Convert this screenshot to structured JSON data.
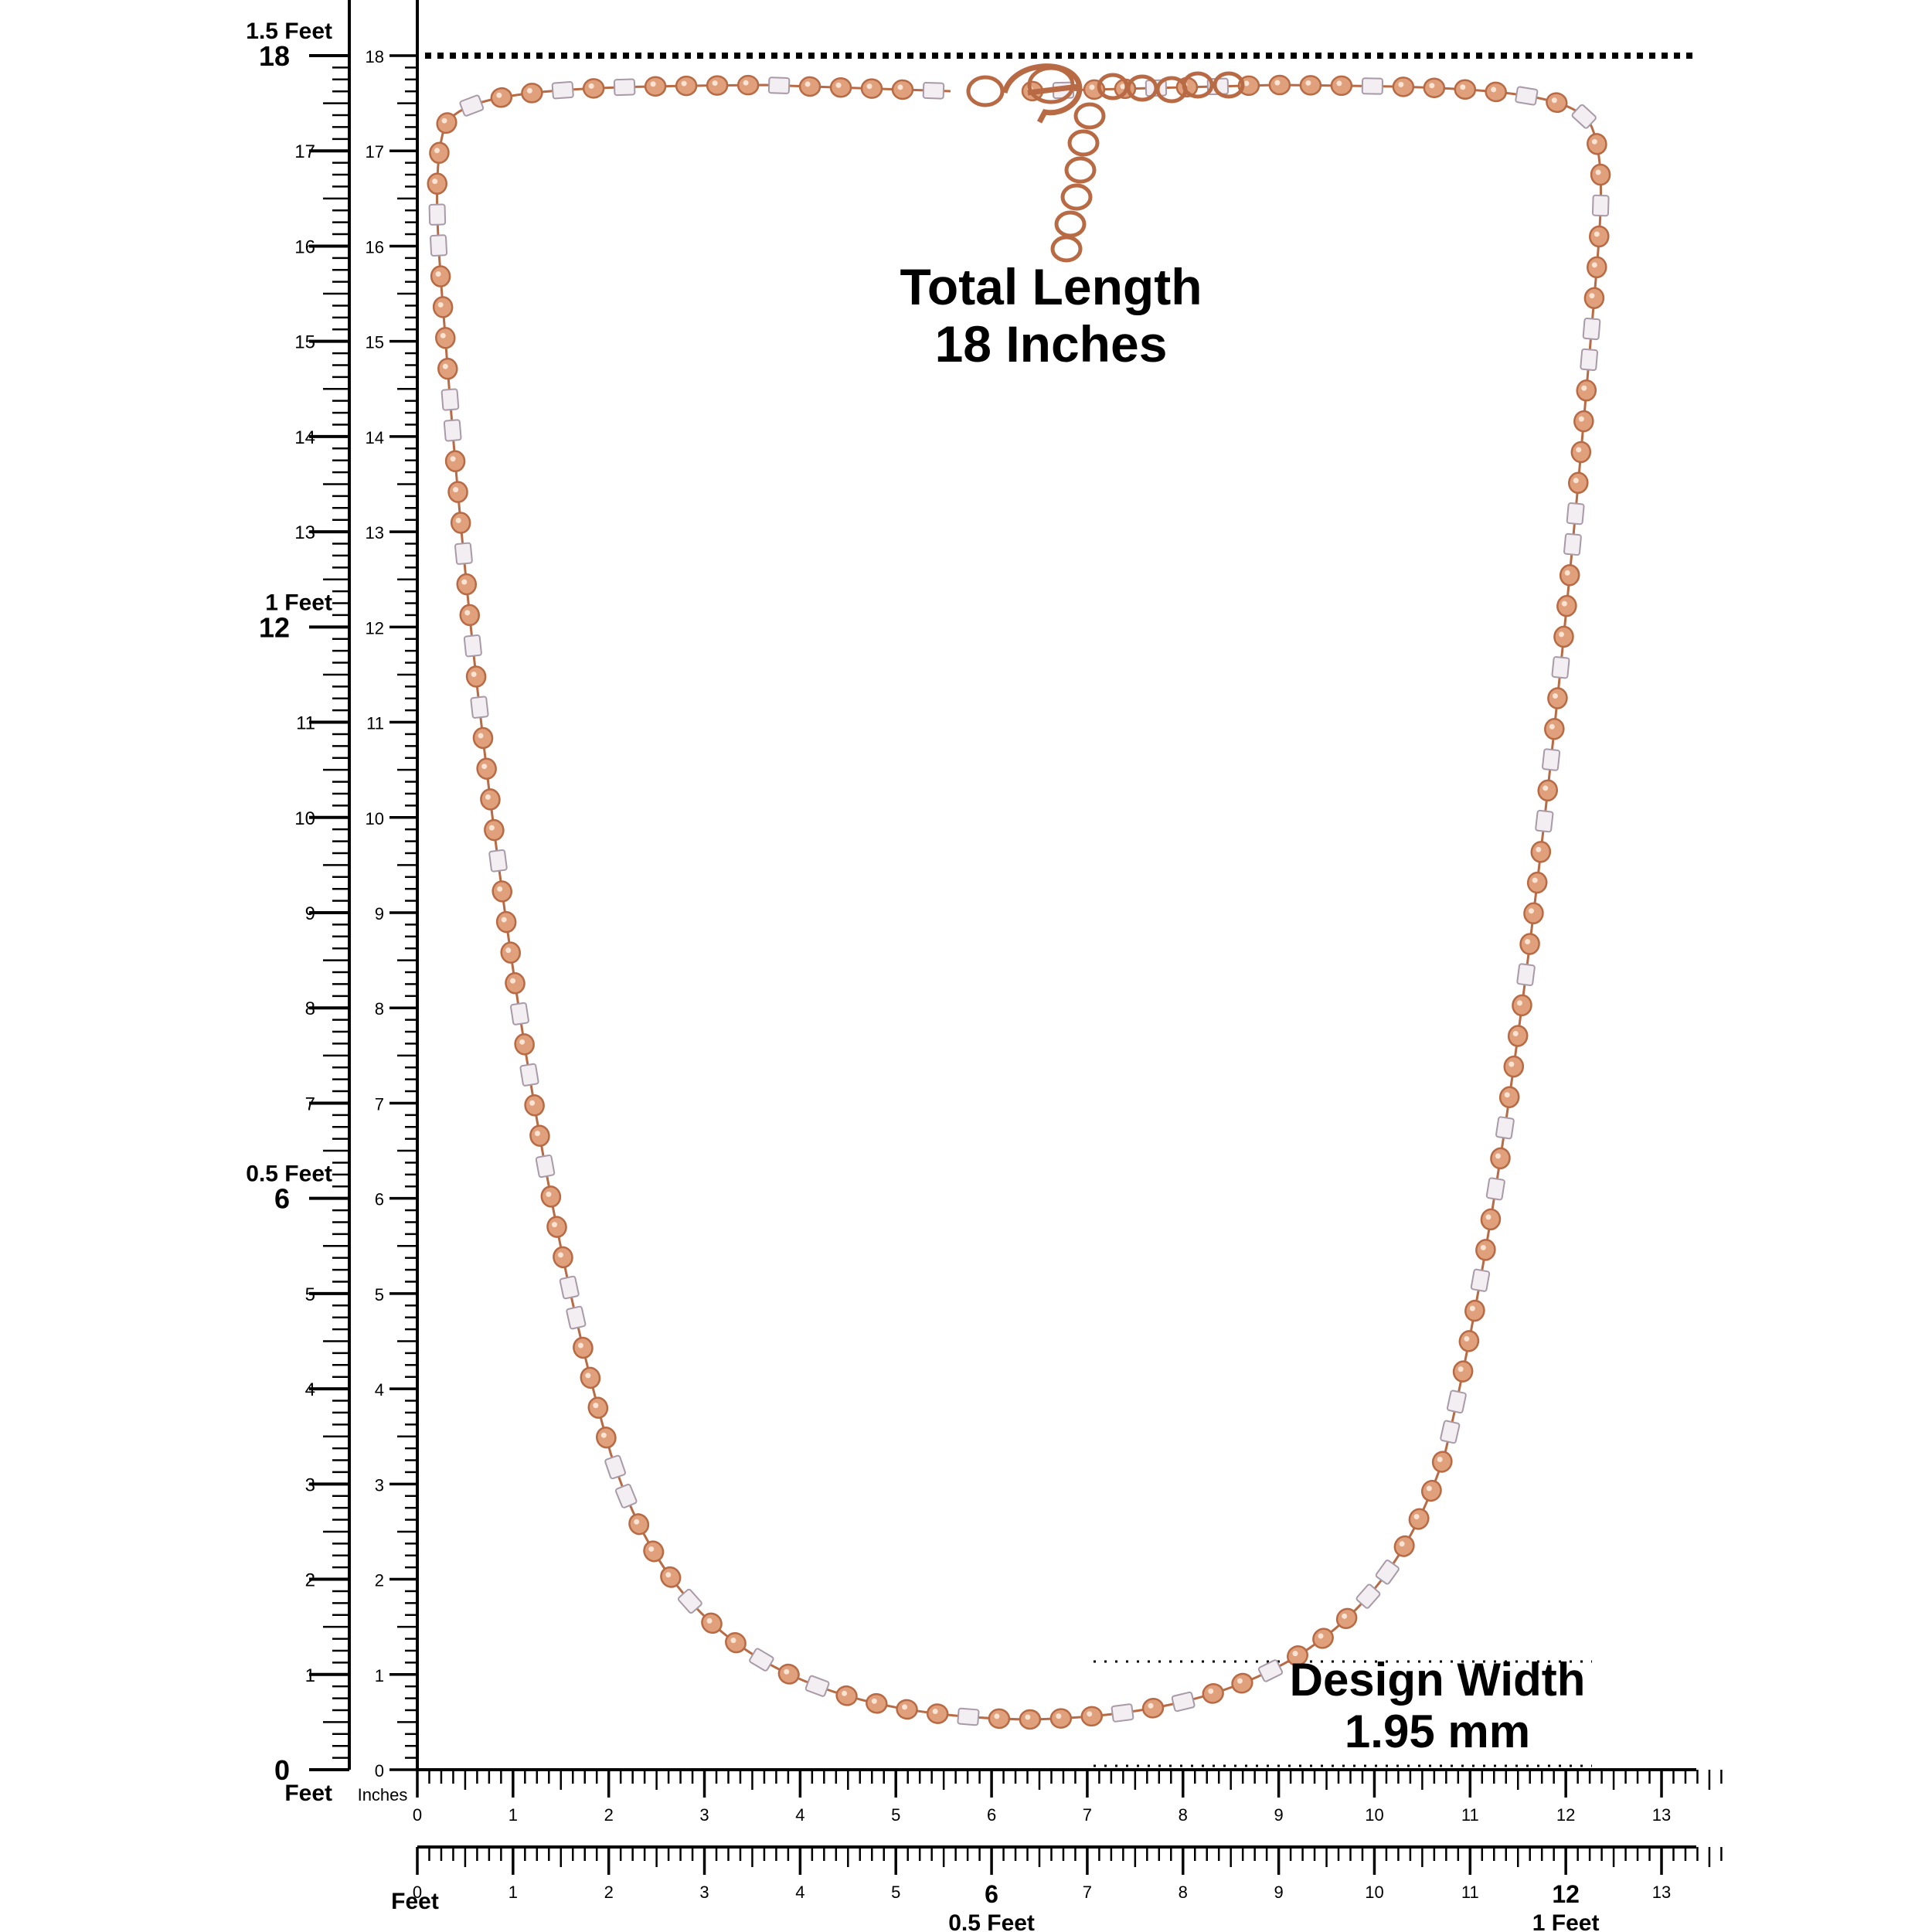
{
  "annotations": {
    "total_length_title": "Total Length",
    "total_length_value": "18 Inches",
    "design_width_title": "Design Width",
    "design_width_value": "1.95 mm"
  },
  "vertical_rulers": {
    "inch_ticks": [
      "0",
      "1",
      "2",
      "3",
      "4",
      "5",
      "6",
      "7",
      "8",
      "9",
      "10",
      "11",
      "12",
      "13",
      "14",
      "15",
      "16",
      "17",
      "18"
    ],
    "feet_labels": [
      {
        "at": 0,
        "text": "0",
        "extra": "Feet"
      },
      {
        "at": 6,
        "text": "6",
        "extra": "0.5 Feet"
      },
      {
        "at": 12,
        "text": "12",
        "extra": "1 Feet"
      },
      {
        "at": 18,
        "text": "18",
        "extra": "1.5 Feet"
      }
    ],
    "unit_label_inches": "Inches"
  },
  "horizontal_rulers": {
    "inch_ticks": [
      "0",
      "1",
      "2",
      "3",
      "4",
      "5",
      "6",
      "7",
      "8",
      "9",
      "10",
      "11",
      "12",
      "13"
    ],
    "feet_unit_label": "Feet",
    "half_foot_label": "0.5 Feet",
    "one_foot_label": "1 Feet"
  },
  "colors": {
    "rose_gold": "#e0a07c",
    "rose_gold_dark": "#b86a44",
    "white_bead": "#f3eef2",
    "white_bead_edge": "#a89aa6",
    "ink": "#000000"
  }
}
